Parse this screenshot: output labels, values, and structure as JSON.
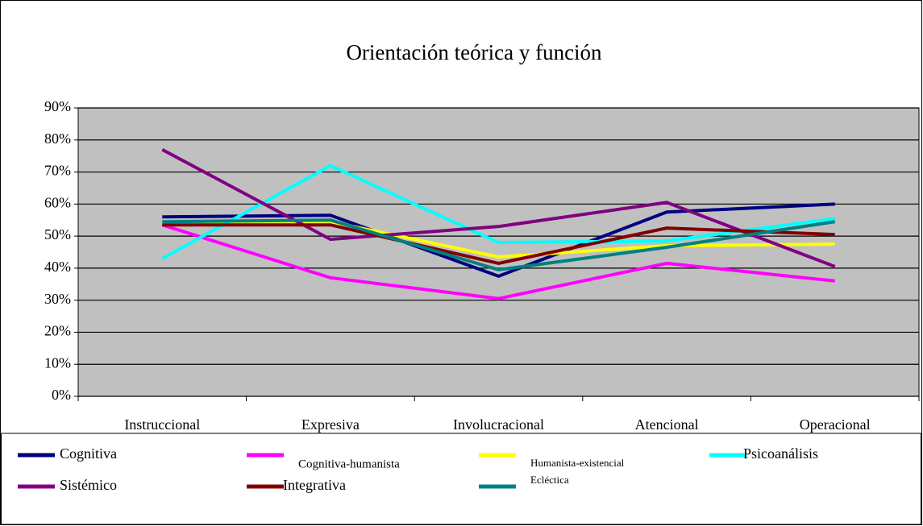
{
  "chart_data": {
    "type": "line",
    "title": "Orientación teórica y función",
    "categories": [
      "Instruccional",
      "Expresiva",
      "Involucracional",
      "Atencional",
      "Operacional"
    ],
    "series": [
      {
        "name": "Cognitiva",
        "color": "#000080",
        "values": [
          56,
          56.5,
          37.5,
          57.5,
          60
        ]
      },
      {
        "name": "Cognitiva-humanista",
        "color": "#ff00ff",
        "values": [
          53.5,
          37,
          30.5,
          41.5,
          36
        ]
      },
      {
        "name": "Humanista-existencial",
        "color": "#ffff00",
        "values": [
          54.5,
          54.5,
          43.5,
          47,
          47.5
        ]
      },
      {
        "name": "Psicoanálisis",
        "color": "#00ffff",
        "values": [
          43,
          72,
          48,
          48.5,
          55.5
        ]
      },
      {
        "name": "Sistémico",
        "color": "#800080",
        "values": [
          77,
          49,
          53,
          60.5,
          40.5
        ]
      },
      {
        "name": "Integrativa",
        "color": "#800000",
        "values": [
          53.5,
          53.5,
          41.5,
          52.5,
          50.5
        ]
      },
      {
        "name": "Ecléctica",
        "color": "#008080",
        "values": [
          54.5,
          55,
          39.5,
          46.5,
          54.5
        ]
      }
    ],
    "ylim": [
      0,
      90
    ],
    "yticks": [
      {
        "value": 0,
        "label": "0%"
      },
      {
        "value": 10,
        "label": "10%"
      },
      {
        "value": 20,
        "label": "20%"
      },
      {
        "value": 30,
        "label": "30%"
      },
      {
        "value": 40,
        "label": "40%"
      },
      {
        "value": 50,
        "label": "50%"
      },
      {
        "value": 60,
        "label": "60%"
      },
      {
        "value": 70,
        "label": "70%"
      },
      {
        "value": 80,
        "label": "80%"
      },
      {
        "value": 90,
        "label": "90%"
      }
    ],
    "grid": true,
    "legend": "bottom"
  }
}
